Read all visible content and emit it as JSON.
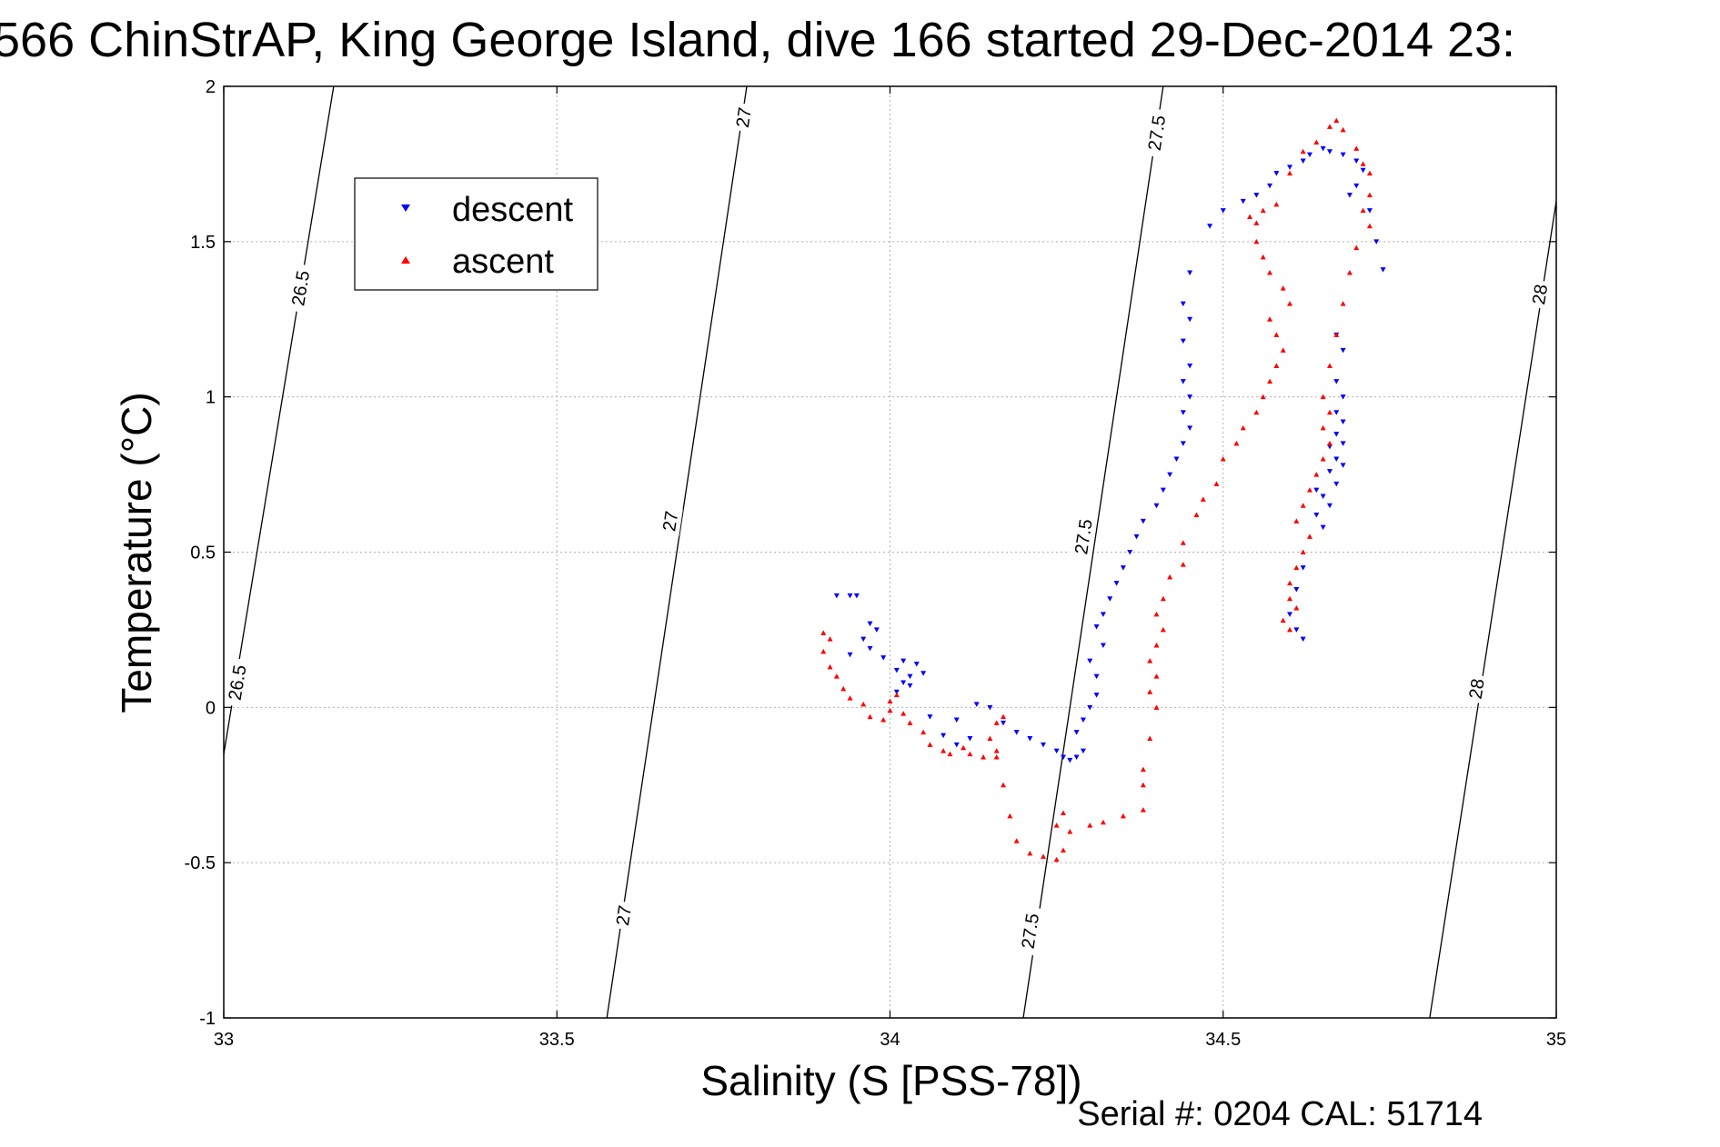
{
  "chart_data": {
    "type": "scatter",
    "title": "566 ChinStrAP, King George Island, dive 166 started 29-Dec-2014 23:",
    "xlabel": "Salinity (S [PSS-78])",
    "ylabel": "Temperature (°C)",
    "footer": "Serial #: 0204  CAL: 51714",
    "xlim": [
      33,
      35
    ],
    "ylim": [
      -1,
      2
    ],
    "xticks": [
      33,
      33.5,
      34,
      34.5,
      35
    ],
    "xtick_labels": [
      "33",
      "33.5",
      "34",
      "34.5",
      "35"
    ],
    "yticks": [
      -1,
      -0.5,
      0,
      0.5,
      1,
      1.5,
      2
    ],
    "ytick_labels": [
      "-1",
      "-0.5",
      "0",
      "0.5",
      "1",
      "1.5",
      "2"
    ],
    "grid": true,
    "legend_position": "top-left",
    "colors": {
      "descent": "#0000ff",
      "ascent": "#ff0000",
      "contour": "#000000",
      "grid": "#b0b0b0"
    },
    "contours": [
      {
        "label": "26.5",
        "x": [
          33.0,
          33.165
        ],
        "y": [
          -0.15,
          2.0
        ],
        "labels": [
          {
            "text": "26.5",
            "x": 33.02,
            "y": 0.08
          },
          {
            "text": "26.5",
            "x": 33.115,
            "y": 1.35
          }
        ]
      },
      {
        "label": "27",
        "x": [
          33.575,
          33.785
        ],
        "y": [
          -1.0,
          2.0
        ],
        "labels": [
          {
            "text": "27",
            "x": 33.6,
            "y": -0.67
          },
          {
            "text": "27",
            "x": 33.67,
            "y": 0.6
          },
          {
            "text": "27",
            "x": 33.78,
            "y": 1.9
          }
        ]
      },
      {
        "label": "27.5",
        "x": [
          34.2,
          34.41
        ],
        "y": [
          -1.0,
          2.0
        ],
        "labels": [
          {
            "text": "27.5",
            "x": 34.21,
            "y": -0.72
          },
          {
            "text": "27.5",
            "x": 34.29,
            "y": 0.55
          },
          {
            "text": "27.5",
            "x": 34.4,
            "y": 1.85
          }
        ]
      },
      {
        "label": "28",
        "x": [
          34.81,
          35.0
        ],
        "y": [
          -1.0,
          1.63
        ],
        "labels": [
          {
            "text": "28",
            "x": 34.88,
            "y": 0.06
          },
          {
            "text": "28",
            "x": 34.975,
            "y": 1.33
          }
        ]
      }
    ],
    "series": [
      {
        "name": "descent",
        "marker": "triangle-down",
        "points": [
          [
            33.92,
            0.36
          ],
          [
            33.94,
            0.36
          ],
          [
            33.95,
            0.36
          ],
          [
            33.97,
            0.27
          ],
          [
            33.98,
            0.25
          ],
          [
            33.96,
            0.22
          ],
          [
            33.94,
            0.17
          ],
          [
            33.97,
            0.19
          ],
          [
            33.99,
            0.16
          ],
          [
            34.01,
            0.12
          ],
          [
            34.02,
            0.08
          ],
          [
            34.03,
            0.1
          ],
          [
            34.02,
            0.15
          ],
          [
            34.04,
            0.14
          ],
          [
            34.05,
            0.11
          ],
          [
            34.03,
            0.07
          ],
          [
            34.01,
            0.05
          ],
          [
            34.06,
            -0.03
          ],
          [
            34.08,
            -0.09
          ],
          [
            34.1,
            -0.12
          ],
          [
            34.12,
            -0.1
          ],
          [
            34.1,
            -0.04
          ],
          [
            34.13,
            0.01
          ],
          [
            34.15,
            0.0
          ],
          [
            34.17,
            -0.05
          ],
          [
            34.19,
            -0.08
          ],
          [
            34.21,
            -0.1
          ],
          [
            34.23,
            -0.12
          ],
          [
            34.25,
            -0.14
          ],
          [
            34.26,
            -0.16
          ],
          [
            34.27,
            -0.17
          ],
          [
            34.28,
            -0.16
          ],
          [
            34.29,
            -0.14
          ],
          [
            34.28,
            -0.08
          ],
          [
            34.29,
            -0.04
          ],
          [
            34.3,
            0.0
          ],
          [
            34.31,
            0.04
          ],
          [
            34.31,
            0.1
          ],
          [
            34.3,
            0.15
          ],
          [
            34.32,
            0.2
          ],
          [
            34.31,
            0.26
          ],
          [
            34.32,
            0.3
          ],
          [
            34.33,
            0.35
          ],
          [
            34.34,
            0.4
          ],
          [
            34.35,
            0.45
          ],
          [
            34.36,
            0.5
          ],
          [
            34.37,
            0.55
          ],
          [
            34.38,
            0.6
          ],
          [
            34.4,
            0.65
          ],
          [
            34.41,
            0.7
          ],
          [
            34.42,
            0.75
          ],
          [
            34.43,
            0.8
          ],
          [
            34.44,
            0.85
          ],
          [
            34.45,
            0.9
          ],
          [
            34.44,
            0.95
          ],
          [
            34.45,
            1.0
          ],
          [
            34.44,
            1.05
          ],
          [
            34.45,
            1.1
          ],
          [
            34.44,
            1.18
          ],
          [
            34.45,
            1.25
          ],
          [
            34.44,
            1.3
          ],
          [
            34.45,
            1.4
          ],
          [
            34.48,
            1.55
          ],
          [
            34.5,
            1.6
          ],
          [
            34.53,
            1.63
          ],
          [
            34.55,
            1.65
          ],
          [
            34.57,
            1.68
          ],
          [
            34.58,
            1.72
          ],
          [
            34.6,
            1.74
          ],
          [
            34.62,
            1.76
          ],
          [
            34.63,
            1.78
          ],
          [
            34.65,
            1.8
          ],
          [
            34.66,
            1.79
          ],
          [
            34.68,
            1.78
          ],
          [
            34.7,
            1.76
          ],
          [
            34.71,
            1.73
          ],
          [
            34.7,
            1.68
          ],
          [
            34.69,
            1.65
          ],
          [
            34.72,
            1.6
          ],
          [
            34.73,
            1.5
          ],
          [
            34.74,
            1.41
          ],
          [
            34.67,
            1.2
          ],
          [
            34.68,
            1.15
          ],
          [
            34.67,
            1.05
          ],
          [
            34.68,
            1.0
          ],
          [
            34.67,
            0.95
          ],
          [
            34.68,
            0.92
          ],
          [
            34.67,
            0.88
          ],
          [
            34.68,
            0.85
          ],
          [
            34.66,
            0.84
          ],
          [
            34.67,
            0.8
          ],
          [
            34.68,
            0.78
          ],
          [
            34.66,
            0.76
          ],
          [
            34.67,
            0.72
          ],
          [
            34.64,
            0.7
          ],
          [
            34.65,
            0.68
          ],
          [
            34.66,
            0.65
          ],
          [
            34.64,
            0.62
          ],
          [
            34.65,
            0.58
          ],
          [
            34.62,
            0.45
          ],
          [
            34.61,
            0.38
          ],
          [
            34.6,
            0.3
          ],
          [
            34.61,
            0.25
          ],
          [
            34.62,
            0.22
          ]
        ]
      },
      {
        "name": "ascent",
        "marker": "triangle-up",
        "points": [
          [
            33.9,
            0.24
          ],
          [
            33.91,
            0.22
          ],
          [
            33.9,
            0.18
          ],
          [
            33.91,
            0.13
          ],
          [
            33.92,
            0.1
          ],
          [
            33.93,
            0.06
          ],
          [
            33.94,
            0.03
          ],
          [
            33.96,
            0.01
          ],
          [
            33.97,
            -0.03
          ],
          [
            33.99,
            -0.04
          ],
          [
            34.0,
            -0.01
          ],
          [
            34.01,
            0.04
          ],
          [
            34.0,
            0.02
          ],
          [
            34.02,
            -0.02
          ],
          [
            34.03,
            -0.05
          ],
          [
            34.05,
            -0.08
          ],
          [
            34.06,
            -0.12
          ],
          [
            34.08,
            -0.14
          ],
          [
            34.09,
            -0.15
          ],
          [
            34.11,
            -0.13
          ],
          [
            34.12,
            -0.15
          ],
          [
            34.14,
            -0.16
          ],
          [
            34.16,
            -0.14
          ],
          [
            34.15,
            -0.1
          ],
          [
            34.16,
            -0.05
          ],
          [
            34.17,
            -0.03
          ],
          [
            34.16,
            -0.16
          ],
          [
            34.17,
            -0.25
          ],
          [
            34.18,
            -0.35
          ],
          [
            34.19,
            -0.43
          ],
          [
            34.21,
            -0.47
          ],
          [
            34.23,
            -0.48
          ],
          [
            34.25,
            -0.49
          ],
          [
            34.26,
            -0.46
          ],
          [
            34.25,
            -0.38
          ],
          [
            34.26,
            -0.34
          ],
          [
            34.27,
            -0.4
          ],
          [
            34.3,
            -0.38
          ],
          [
            34.32,
            -0.37
          ],
          [
            34.35,
            -0.35
          ],
          [
            34.38,
            -0.33
          ],
          [
            34.38,
            -0.25
          ],
          [
            34.38,
            -0.2
          ],
          [
            34.39,
            -0.1
          ],
          [
            34.4,
            0.0
          ],
          [
            34.39,
            0.05
          ],
          [
            34.4,
            0.1
          ],
          [
            34.39,
            0.15
          ],
          [
            34.4,
            0.2
          ],
          [
            34.41,
            0.25
          ],
          [
            34.4,
            0.3
          ],
          [
            34.41,
            0.35
          ],
          [
            34.42,
            0.42
          ],
          [
            34.44,
            0.46
          ],
          [
            34.44,
            0.53
          ],
          [
            34.46,
            0.62
          ],
          [
            34.47,
            0.67
          ],
          [
            34.49,
            0.72
          ],
          [
            34.5,
            0.8
          ],
          [
            34.52,
            0.85
          ],
          [
            34.53,
            0.9
          ],
          [
            34.55,
            0.95
          ],
          [
            34.56,
            1.0
          ],
          [
            34.57,
            1.05
          ],
          [
            34.58,
            1.1
          ],
          [
            34.59,
            1.15
          ],
          [
            34.58,
            1.2
          ],
          [
            34.57,
            1.25
          ],
          [
            34.6,
            1.3
          ],
          [
            34.59,
            1.35
          ],
          [
            34.57,
            1.4
          ],
          [
            34.56,
            1.45
          ],
          [
            34.55,
            1.5
          ],
          [
            34.55,
            1.56
          ],
          [
            34.54,
            1.58
          ],
          [
            34.56,
            1.6
          ],
          [
            34.58,
            1.62
          ],
          [
            34.6,
            1.72
          ],
          [
            34.62,
            1.79
          ],
          [
            34.64,
            1.82
          ],
          [
            34.66,
            1.87
          ],
          [
            34.67,
            1.89
          ],
          [
            34.68,
            1.86
          ],
          [
            34.7,
            1.8
          ],
          [
            34.71,
            1.75
          ],
          [
            34.72,
            1.72
          ],
          [
            34.72,
            1.65
          ],
          [
            34.71,
            1.6
          ],
          [
            34.72,
            1.55
          ],
          [
            34.7,
            1.48
          ],
          [
            34.69,
            1.4
          ],
          [
            34.68,
            1.3
          ],
          [
            34.67,
            1.2
          ],
          [
            34.66,
            1.1
          ],
          [
            34.65,
            1.0
          ],
          [
            34.66,
            0.95
          ],
          [
            34.65,
            0.9
          ],
          [
            34.66,
            0.85
          ],
          [
            34.65,
            0.8
          ],
          [
            34.64,
            0.75
          ],
          [
            34.63,
            0.7
          ],
          [
            34.62,
            0.65
          ],
          [
            34.61,
            0.6
          ],
          [
            34.63,
            0.55
          ],
          [
            34.62,
            0.5
          ],
          [
            34.61,
            0.45
          ],
          [
            34.6,
            0.4
          ],
          [
            34.6,
            0.35
          ],
          [
            34.61,
            0.32
          ],
          [
            34.59,
            0.28
          ],
          [
            34.6,
            0.25
          ]
        ]
      }
    ]
  }
}
